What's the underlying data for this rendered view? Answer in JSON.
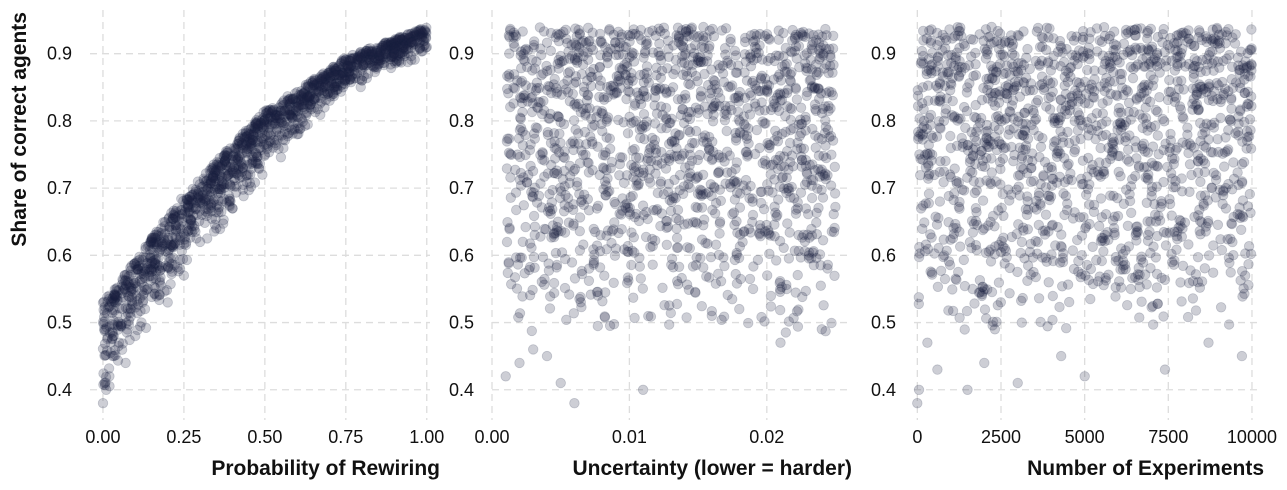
{
  "chart_data": [
    {
      "type": "scatter",
      "xlabel": "Probability of Rewiring",
      "ylabel": "Share of correct agents",
      "xlim": [
        -0.04,
        1.01
      ],
      "ylim": [
        0.355,
        0.965
      ],
      "xticks": [
        0.0,
        0.25,
        0.5,
        0.75,
        1.0
      ],
      "xtick_labels": [
        "0.00",
        "0.25",
        "0.50",
        "0.75",
        "1.00"
      ],
      "yticks": [
        0.4,
        0.5,
        0.6,
        0.7,
        0.8,
        0.9
      ],
      "ytick_labels": [
        "0.4",
        "0.5",
        "0.6",
        "0.7",
        "0.8",
        "0.9"
      ],
      "grid": true,
      "point_color": "#1b2240",
      "point_alpha": 0.22,
      "relationship": "increasing concave",
      "upper_envelope": [
        [
          0.0,
          0.53
        ],
        [
          0.25,
          0.69
        ],
        [
          0.5,
          0.815
        ],
        [
          0.75,
          0.895
        ],
        [
          1.0,
          0.94
        ]
      ],
      "lower_envelope": [
        [
          0.0,
          0.38
        ],
        [
          0.1,
          0.46
        ],
        [
          0.25,
          0.56
        ],
        [
          0.5,
          0.72
        ],
        [
          0.75,
          0.84
        ],
        [
          1.0,
          0.9
        ]
      ],
      "points": [
        [
          0.0,
          0.38
        ],
        [
          0.005,
          0.41
        ],
        [
          0.01,
          0.4
        ],
        [
          0.02,
          0.42
        ],
        [
          0.03,
          0.45
        ],
        [
          0.05,
          0.47
        ],
        [
          0.07,
          0.44
        ],
        [
          0.1,
          0.48
        ],
        [
          0.13,
          0.52
        ],
        [
          0.2,
          0.53
        ],
        [
          0.25,
          0.57
        ],
        [
          0.3,
          0.62
        ],
        [
          0.35,
          0.64
        ],
        [
          0.4,
          0.67
        ],
        [
          0.5,
          0.75
        ],
        [
          0.6,
          0.78
        ],
        [
          0.7,
          0.83
        ],
        [
          0.8,
          0.86
        ],
        [
          0.9,
          0.9
        ],
        [
          1.0,
          0.91
        ]
      ]
    },
    {
      "type": "scatter",
      "xlabel": "Uncertainty (lower = harder)",
      "xlim": [
        0.0,
        0.0262
      ],
      "ylim": [
        0.355,
        0.965
      ],
      "xticks": [
        0.0,
        0.01,
        0.02
      ],
      "xtick_labels": [
        "0.00",
        "0.01",
        "0.02"
      ],
      "yticks": [
        0.4,
        0.5,
        0.6,
        0.7,
        0.8,
        0.9
      ],
      "ytick_labels": [
        "0.4",
        "0.5",
        "0.6",
        "0.7",
        "0.8",
        "0.9"
      ],
      "grid": true,
      "point_color": "#1b2240",
      "point_alpha": 0.22,
      "x_range_of_points": [
        0.001,
        0.025
      ],
      "y_range_of_points": [
        0.38,
        0.94
      ],
      "density": "densest near top (0.85-0.94), sparse below 0.55",
      "points": [
        [
          0.001,
          0.42
        ],
        [
          0.002,
          0.44
        ],
        [
          0.003,
          0.46
        ],
        [
          0.004,
          0.45
        ],
        [
          0.005,
          0.41
        ],
        [
          0.006,
          0.38
        ],
        [
          0.011,
          0.4
        ],
        [
          0.016,
          0.51
        ],
        [
          0.021,
          0.47
        ],
        [
          0.024,
          0.49
        ],
        [
          0.018,
          0.52
        ],
        [
          0.019,
          0.55
        ]
      ]
    },
    {
      "type": "scatter",
      "xlabel": "Number of Experiments",
      "xlim": [
        -100,
        10300
      ],
      "ylim": [
        0.355,
        0.965
      ],
      "xticks": [
        0,
        2500,
        5000,
        7500,
        10000
      ],
      "xtick_labels": [
        "0",
        "2500",
        "5000",
        "7500",
        "10000"
      ],
      "yticks": [
        0.4,
        0.5,
        0.6,
        0.7,
        0.8,
        0.9
      ],
      "ytick_labels": [
        "0.4",
        "0.5",
        "0.6",
        "0.7",
        "0.8",
        "0.9"
      ],
      "grid": true,
      "point_color": "#1b2240",
      "point_alpha": 0.22,
      "x_range_of_points": [
        0,
        10000
      ],
      "y_range_of_points": [
        0.38,
        0.94
      ],
      "density": "densest near top (0.85-0.94), sparse below 0.55",
      "points": [
        [
          0,
          0.38
        ],
        [
          50,
          0.4
        ],
        [
          300,
          0.47
        ],
        [
          600,
          0.43
        ],
        [
          1500,
          0.4
        ],
        [
          2000,
          0.44
        ],
        [
          3000,
          0.41
        ],
        [
          4300,
          0.45
        ],
        [
          5000,
          0.42
        ],
        [
          7400,
          0.43
        ],
        [
          9700,
          0.45
        ],
        [
          8700,
          0.47
        ]
      ]
    }
  ]
}
